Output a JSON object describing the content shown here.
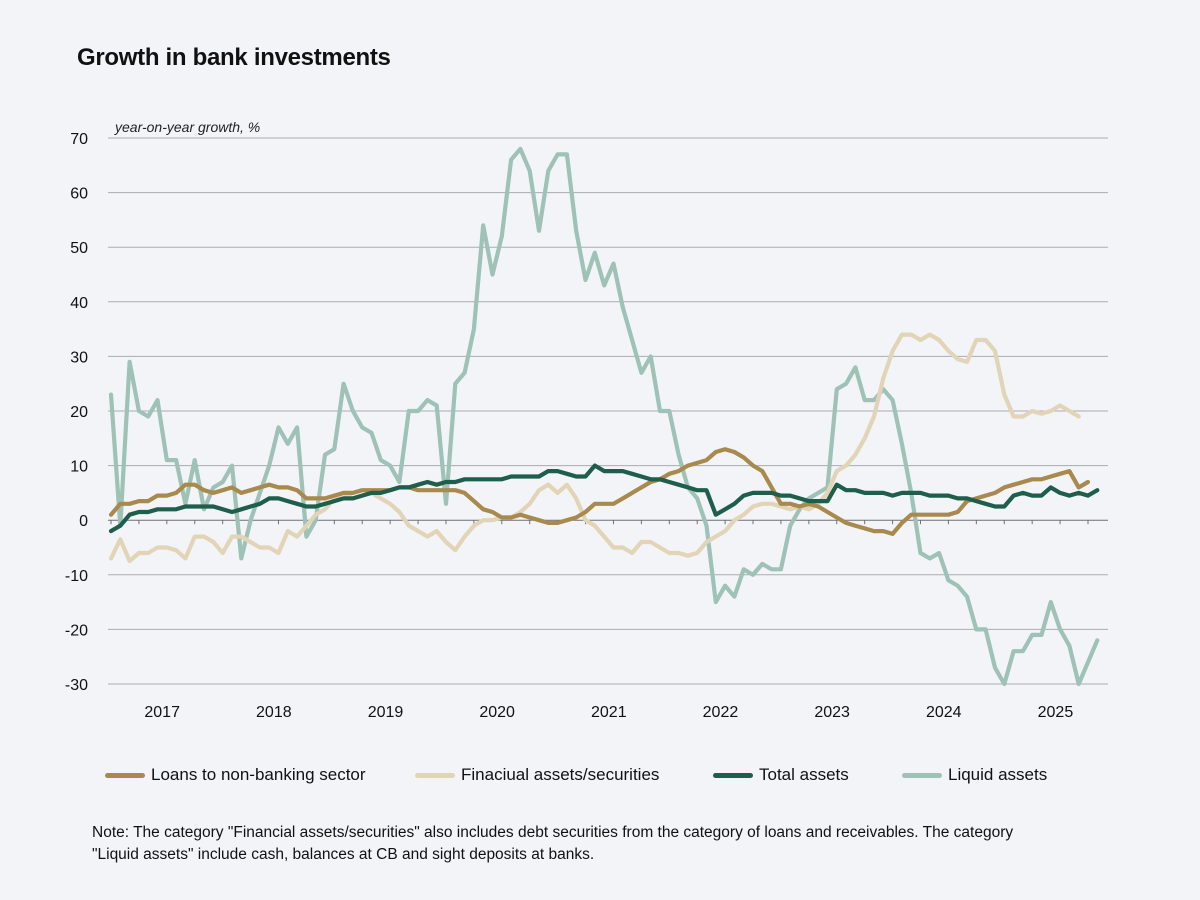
{
  "chart_data": {
    "type": "line",
    "title": "Growth in bank investments",
    "ylabel": "year-on-year growth, %",
    "xlabel": "",
    "ylim": [
      -30,
      70
    ],
    "yticks": [
      -30,
      -20,
      -10,
      0,
      10,
      20,
      30,
      40,
      50,
      60,
      70
    ],
    "year_labels": [
      "2017",
      "2018",
      "2019",
      "2020",
      "2021",
      "2022",
      "2023",
      "2024",
      "2025"
    ],
    "x_start": "2016-07",
    "x_end": "2025-04",
    "grid": true,
    "legend_position": "bottom",
    "series": [
      {
        "name": "Loans to non-banking sector",
        "color": "#a88a4e",
        "values": [
          1,
          3,
          3,
          3.5,
          3.5,
          4.5,
          4.5,
          5,
          6.5,
          6.5,
          5.5,
          5,
          5.5,
          6,
          5,
          5.5,
          6,
          6.5,
          6,
          6,
          5.5,
          4,
          4,
          4,
          4.5,
          5,
          5,
          5.5,
          5.5,
          5.5,
          5.5,
          6,
          6,
          5.5,
          5.5,
          5.5,
          5.5,
          5.5,
          5,
          3.5,
          2,
          1.5,
          0.5,
          0.5,
          1,
          0.5,
          0,
          -0.5,
          -0.5,
          0,
          0.5,
          1.5,
          3,
          3,
          3,
          4,
          5,
          6,
          7,
          7.5,
          8.5,
          9,
          10,
          10.5,
          11,
          12.5,
          13,
          12.5,
          11.5,
          10,
          9,
          6,
          3,
          3,
          2.5,
          3,
          2.5,
          1.5,
          0.5,
          -0.5,
          -1,
          -1.5,
          -2,
          -2,
          -2.5,
          -0.5,
          1,
          1,
          1,
          1,
          1,
          1.5,
          3.5,
          4,
          4.5,
          5,
          6,
          6.5,
          7,
          7.5,
          7.5,
          8,
          8.5,
          9,
          6,
          7
        ]
      },
      {
        "name": "Finaciual assets/securities",
        "color": "#e2d4b6",
        "values": [
          -7,
          -3.5,
          -7.5,
          -6,
          -6,
          -5,
          -5,
          -5.5,
          -7,
          -3,
          -3,
          -4,
          -6,
          -3,
          -3,
          -4,
          -5,
          -5,
          -6,
          -2,
          -3,
          -1,
          1,
          2,
          4,
          5,
          4,
          4.5,
          5,
          4,
          3,
          1.5,
          -1,
          -2,
          -3,
          -2,
          -4,
          -5.5,
          -3,
          -1,
          0,
          0,
          0.5,
          0.5,
          1.5,
          3,
          5.5,
          6.5,
          5,
          6.5,
          4,
          0,
          -1,
          -3,
          -5,
          -5,
          -6,
          -4,
          -4,
          -5,
          -6,
          -6,
          -6.5,
          -6,
          -4,
          -3,
          -2,
          0,
          1,
          2.5,
          3,
          3,
          2.5,
          2,
          2.5,
          2,
          3,
          5,
          9,
          10,
          12,
          15,
          19,
          26,
          31,
          34,
          34,
          33,
          34,
          33,
          31,
          29.5,
          29,
          33,
          33,
          31,
          23,
          19,
          19,
          20,
          19.5,
          20,
          21,
          20,
          19
        ]
      },
      {
        "name": "Total assets",
        "color": "#1f5e4b",
        "values": [
          -2,
          -1,
          1,
          1.5,
          1.5,
          2,
          2,
          2,
          2.5,
          2.5,
          2.5,
          2.5,
          2,
          1.5,
          2,
          2.5,
          3,
          4,
          4,
          3.5,
          3,
          2.5,
          2.5,
          3,
          3.5,
          4,
          4,
          4.5,
          5,
          5,
          5.5,
          6,
          6,
          6.5,
          7,
          6.5,
          7,
          7,
          7.5,
          7.5,
          7.5,
          7.5,
          7.5,
          8,
          8,
          8,
          8,
          9,
          9,
          8.5,
          8,
          8,
          10,
          9,
          9,
          9,
          8.5,
          8,
          7.5,
          7.5,
          7,
          6.5,
          6,
          5.5,
          5.5,
          1,
          2,
          3,
          4.5,
          5,
          5,
          5,
          4.5,
          4.5,
          4,
          3.5,
          3.5,
          3.5,
          6.5,
          5.5,
          5.5,
          5,
          5,
          5,
          4.5,
          5,
          5,
          5,
          4.5,
          4.5,
          4.5,
          4,
          4,
          3.5,
          3,
          2.5,
          2.5,
          4.5,
          5,
          4.5,
          4.5,
          6,
          5,
          4.5,
          5,
          4.5,
          5.5
        ]
      },
      {
        "name": "Liquid assets",
        "color": "#9ec2b6",
        "values": [
          23,
          -1,
          29,
          20,
          19,
          22,
          11,
          11,
          3,
          11,
          2,
          6,
          7,
          10,
          -7,
          0,
          5,
          10,
          17,
          14,
          17,
          -3,
          0,
          12,
          13,
          25,
          20,
          17,
          16,
          11,
          10,
          7,
          20,
          20,
          22,
          21,
          3,
          25,
          27,
          35,
          54,
          45,
          52,
          66,
          68,
          64,
          53,
          64,
          67,
          67,
          53,
          44,
          49,
          43,
          47,
          39,
          33,
          27,
          30,
          20,
          20,
          12,
          6,
          4,
          -1,
          -15,
          -12,
          -14,
          -9,
          -10,
          -8,
          -9,
          -9,
          -1,
          2,
          4,
          5,
          6,
          24,
          25,
          28,
          22,
          22,
          24,
          22,
          14,
          5,
          -6,
          -7,
          -6,
          -11,
          -12,
          -14,
          -20,
          -20,
          -27,
          -30,
          -24,
          -24,
          -21,
          -21,
          -15,
          -20,
          -23,
          -30,
          -26,
          -22
        ]
      }
    ]
  },
  "note": "Note: The category \"Financial assets/securities\" also includes debt securities from the category of loans and receivables. The category \"Liquid assets\" include cash, balances at CB and sight deposits at banks."
}
